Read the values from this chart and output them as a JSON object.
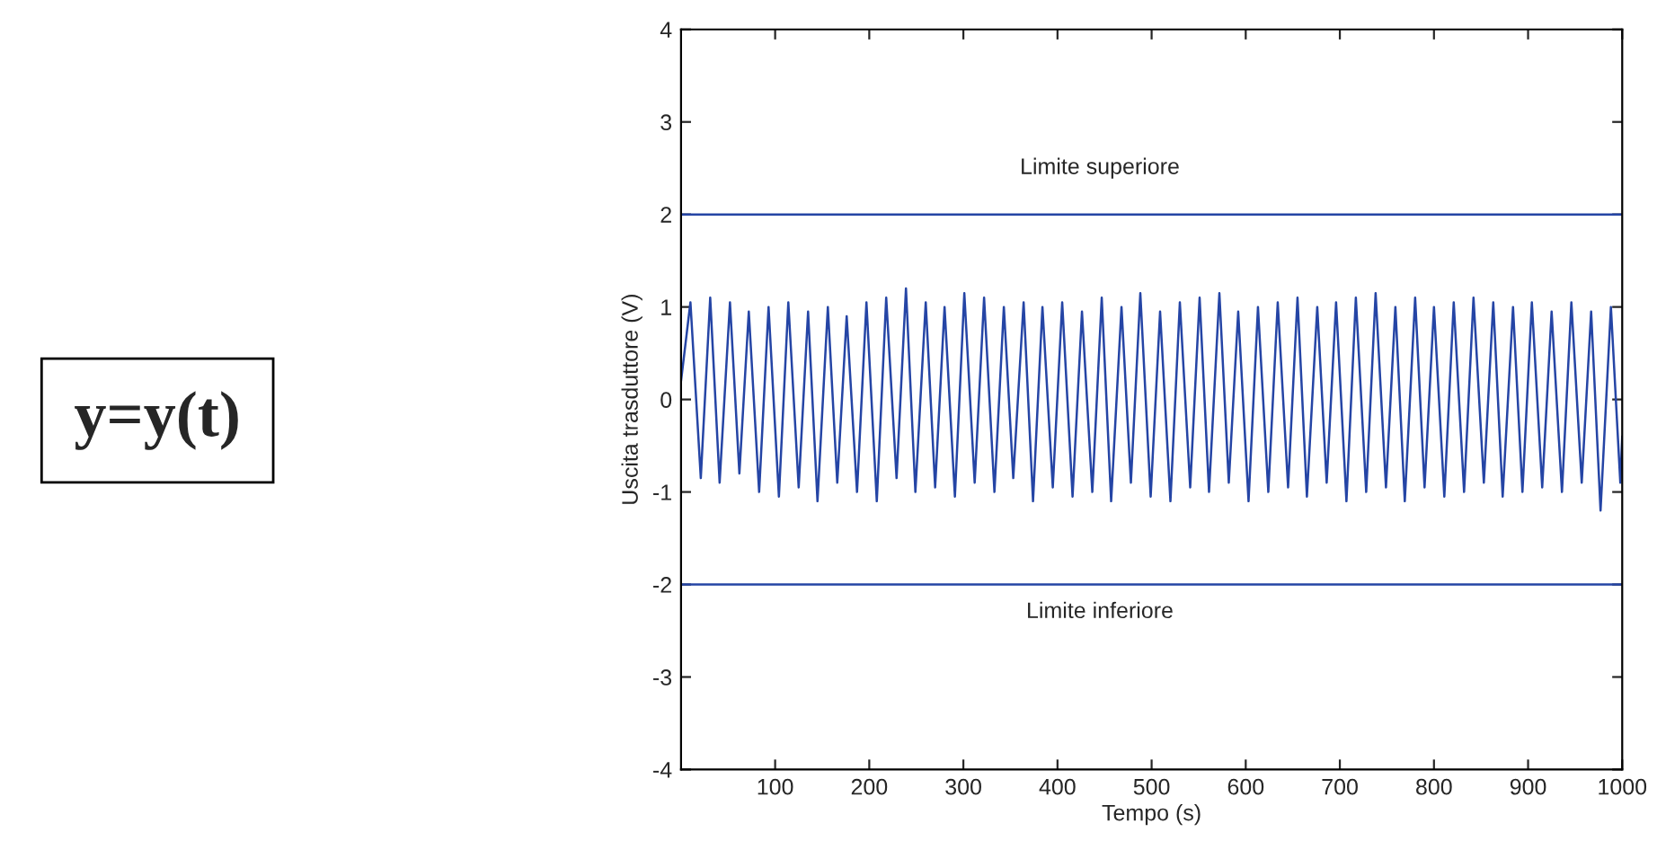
{
  "chart_data": {
    "type": "line",
    "xlabel": "Tempo (s)",
    "ylabel": "Uscita trasduttore (V)",
    "x": [
      0,
      10,
      21,
      31,
      41,
      52,
      62,
      72,
      83,
      93,
      104,
      114,
      125,
      135,
      145,
      156,
      166,
      176,
      187,
      197,
      208,
      218,
      229,
      239,
      249,
      260,
      270,
      280,
      291,
      301,
      312,
      322,
      333,
      343,
      353,
      364,
      374,
      384,
      395,
      405,
      416,
      426,
      437,
      447,
      457,
      468,
      478,
      488,
      499,
      509,
      520,
      530,
      541,
      551,
      561,
      572,
      582,
      592,
      603,
      613,
      624,
      634,
      645,
      655,
      665,
      676,
      686,
      696,
      707,
      717,
      728,
      738,
      749,
      759,
      769,
      780,
      790,
      800,
      811,
      821,
      832,
      842,
      853,
      863,
      873,
      884,
      894,
      904,
      915,
      925,
      936,
      946,
      957,
      967,
      977,
      988,
      998,
      1000
    ],
    "series": [
      {
        "color": "#2545a5",
        "values": [
          0.2,
          1.05,
          -0.85,
          1.1,
          -0.9,
          1.05,
          -0.8,
          0.95,
          -1.0,
          1.0,
          -1.05,
          1.05,
          -0.95,
          0.95,
          -1.1,
          1.0,
          -0.9,
          0.9,
          -1.0,
          1.05,
          -1.1,
          1.1,
          -0.85,
          1.2,
          -1.0,
          1.05,
          -0.95,
          1.0,
          -1.05,
          1.15,
          -0.9,
          1.1,
          -1.0,
          1.0,
          -0.85,
          1.05,
          -1.1,
          1.0,
          -0.95,
          1.05,
          -1.05,
          0.95,
          -1.0,
          1.1,
          -1.1,
          1.0,
          -0.9,
          1.15,
          -1.05,
          0.95,
          -1.1,
          1.05,
          -0.95,
          1.1,
          -1.0,
          1.15,
          -0.9,
          0.95,
          -1.1,
          1.0,
          -1.0,
          1.05,
          -0.95,
          1.1,
          -1.05,
          1.0,
          -0.9,
          1.05,
          -1.1,
          1.1,
          -1.0,
          1.15,
          -0.95,
          1.0,
          -1.1,
          1.1,
          -0.95,
          1.0,
          -1.05,
          1.05,
          -1.0,
          1.1,
          -0.9,
          1.05,
          -1.05,
          1.0,
          -1.0,
          1.05,
          -0.95,
          0.95,
          -1.0,
          1.05,
          -0.9,
          0.95,
          -1.2,
          1.0,
          -0.9,
          -0.4
        ]
      }
    ],
    "xlim": [
      0,
      1000
    ],
    "xticks": [
      100,
      200,
      300,
      400,
      500,
      600,
      700,
      800,
      900,
      1000
    ],
    "ylim": [
      -4,
      4
    ],
    "yticks": [
      -4,
      -3,
      -2,
      -1,
      0,
      1,
      2,
      3,
      4
    ],
    "ref_lines": [
      {
        "axis": "y",
        "value": 2,
        "label": "Limite superiore",
        "color": "#2545a5"
      },
      {
        "axis": "y",
        "value": -2,
        "label": "Limite inferiore",
        "color": "#2545a5"
      }
    ],
    "annotations": [
      "y=y(t)"
    ],
    "grid": false,
    "legend": false
  }
}
